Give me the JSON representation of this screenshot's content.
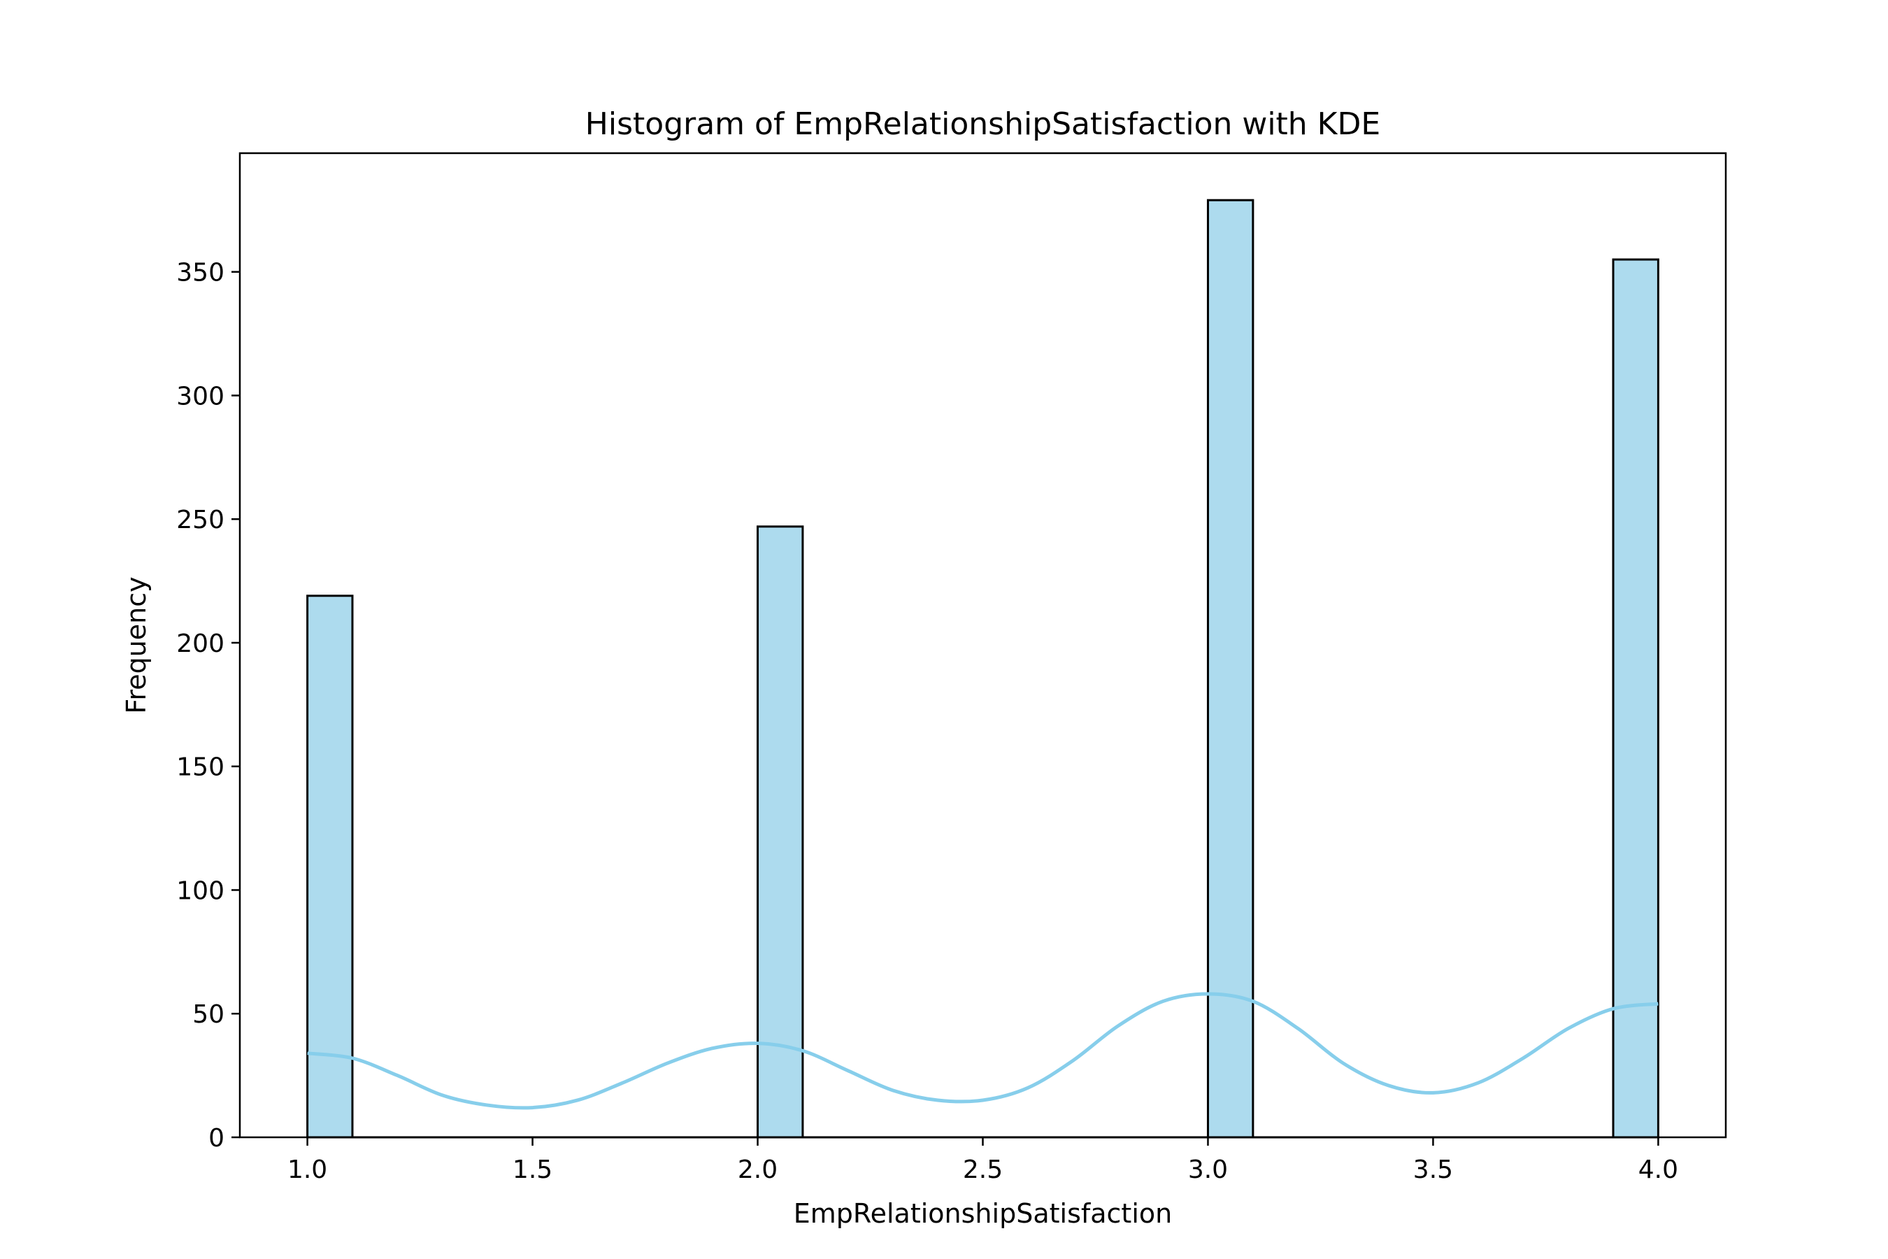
{
  "chart_data": {
    "type": "bar",
    "title": "Histogram of EmpRelationshipSatisfaction with KDE",
    "xlabel": "EmpRelationshipSatisfaction",
    "ylabel": "Frequency",
    "xlim": [
      0.85,
      4.15
    ],
    "ylim": [
      0,
      398
    ],
    "xticks": [
      "1.0",
      "1.5",
      "2.0",
      "2.5",
      "3.0",
      "3.5",
      "4.0"
    ],
    "yticks": [
      "0",
      "50",
      "100",
      "150",
      "200",
      "250",
      "300",
      "350"
    ],
    "bin_width": 0.1,
    "bars": [
      {
        "x0": 1.0,
        "x1": 1.1,
        "value": 219
      },
      {
        "x0": 2.0,
        "x1": 2.1,
        "value": 247
      },
      {
        "x0": 3.0,
        "x1": 3.1,
        "value": 379
      },
      {
        "x0": 3.9,
        "x1": 4.0,
        "value": 355
      }
    ],
    "kde": {
      "x": [
        1.0,
        1.1,
        1.2,
        1.3,
        1.4,
        1.5,
        1.6,
        1.7,
        1.8,
        1.9,
        2.0,
        2.1,
        2.2,
        2.3,
        2.4,
        2.5,
        2.6,
        2.7,
        2.8,
        2.9,
        3.0,
        3.1,
        3.2,
        3.3,
        3.4,
        3.5,
        3.6,
        3.7,
        3.8,
        3.9,
        4.0
      ],
      "y": [
        34,
        32,
        25,
        17,
        13,
        12,
        15,
        22,
        30,
        36,
        38,
        35,
        27,
        19,
        15,
        15,
        20,
        31,
        45,
        55,
        58,
        55,
        44,
        30,
        21,
        18,
        22,
        32,
        44,
        52,
        54
      ]
    },
    "bar_color": "#ADDBEE",
    "bar_edge_color": "#000000",
    "kde_color": "#87CEEB",
    "grid": false
  }
}
